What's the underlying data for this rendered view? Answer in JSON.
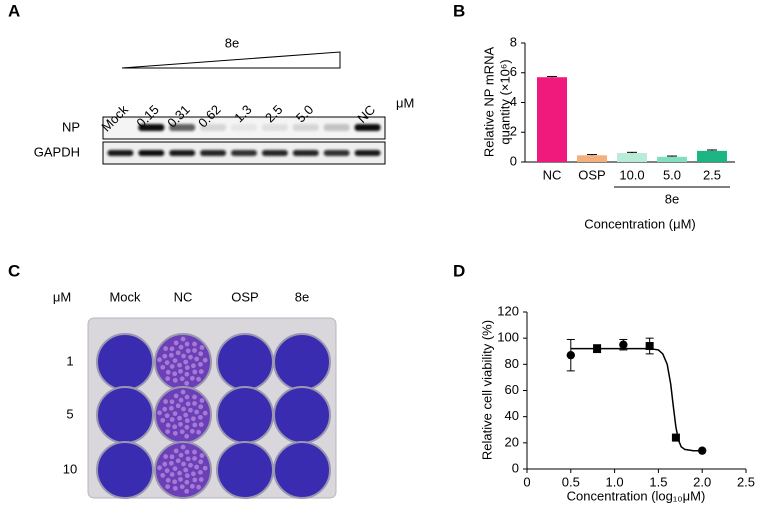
{
  "blot": {
    "label": "A",
    "compound": "8e",
    "unit": "μM",
    "lanes": [
      "Mock",
      "0.15",
      "0.31",
      "0.62",
      "1.3",
      "2.5",
      "5.0",
      "NC"
    ],
    "rows": [
      "NP",
      "GAPDH"
    ]
  },
  "plate": {
    "label": "C",
    "unit": "μM",
    "columns": [
      "Mock",
      "NC",
      "OSP",
      "8e"
    ],
    "rows": [
      "1",
      "5",
      "10"
    ]
  },
  "chart_data": [
    {
      "type": "bar",
      "label": "B",
      "ylabel": [
        "Relative NP mRNA",
        "quantity (×10⁶)"
      ],
      "xlabel": "Concentration (μM)",
      "categories": [
        "NC",
        "OSP",
        "10.0",
        "5.0",
        "2.5"
      ],
      "group_label": "8e",
      "values": [
        5.7,
        0.45,
        0.6,
        0.35,
        0.75
      ],
      "errors": [
        0.05,
        0.05,
        0.05,
        0.05,
        0.06
      ],
      "colors": [
        "#ef1a7c",
        "#f4b07c",
        "#b8ecd6",
        "#7fdfbf",
        "#1cb583"
      ],
      "ylim": [
        0,
        8
      ],
      "yticks": [
        0,
        2,
        4,
        6,
        8
      ]
    },
    {
      "type": "scatter",
      "label": "D",
      "ylabel": "Relative cell viability (%)",
      "xlabel": "Concentration (log₁₀μM)",
      "x": [
        0.5,
        0.8,
        1.1,
        1.4,
        1.7,
        2.0
      ],
      "values": [
        87,
        92,
        95,
        94,
        24,
        14
      ],
      "errors": [
        12,
        3,
        4,
        6,
        null,
        null
      ],
      "markers": [
        "circle",
        "square",
        "circle",
        "square",
        "square",
        "circle"
      ],
      "fit": {
        "x": [
          0.5,
          1.4,
          1.5,
          1.55,
          1.6,
          1.64,
          1.67,
          1.7,
          1.73,
          1.76,
          1.8,
          1.9,
          2.0
        ],
        "y": [
          92,
          92,
          91,
          88,
          80,
          65,
          48,
          32,
          22,
          17,
          15,
          14,
          14
        ]
      },
      "xlim": [
        0,
        2.5
      ],
      "xticks": [
        0,
        0.5,
        {
          "value": 1,
          "label": "1.0"
        },
        1.5,
        {
          "value": 2,
          "label": "2.0"
        },
        2.5
      ],
      "ylim": [
        0,
        120
      ],
      "yticks": [
        0,
        20,
        40,
        60,
        80,
        100,
        120
      ]
    }
  ]
}
